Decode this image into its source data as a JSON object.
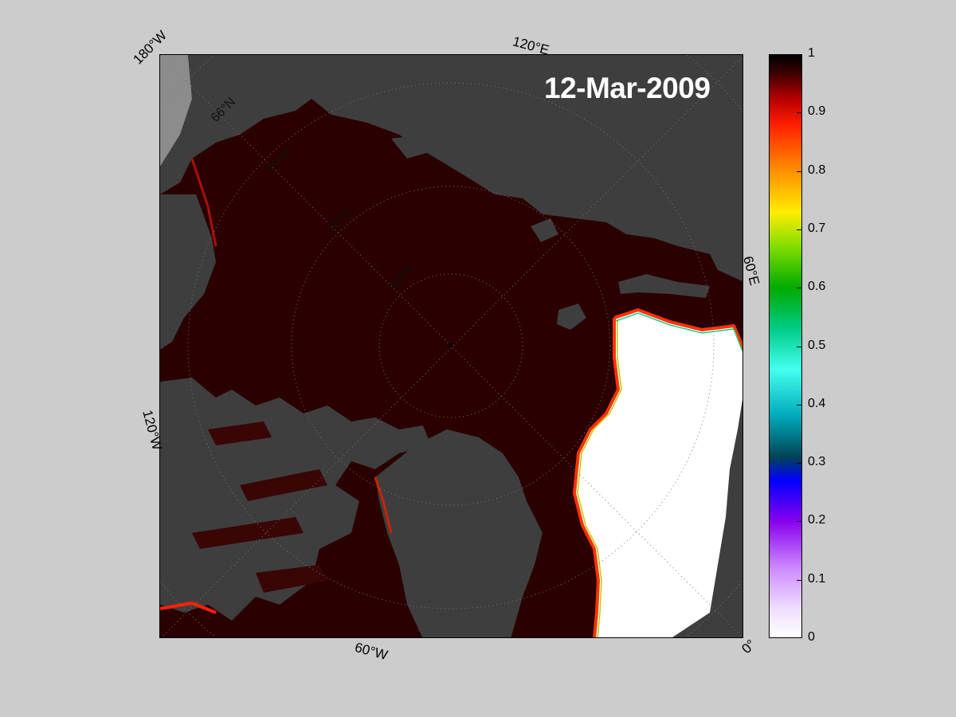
{
  "map": {
    "date": "12-Mar-2009",
    "edge_labels": {
      "top_left": "180°W",
      "top": "120°E",
      "right": "60°E",
      "left": "120°W",
      "bottom": "60°W",
      "bottom_right": "0°"
    },
    "lat_labels": [
      "66°N",
      "72°N",
      "78°N",
      "84°N"
    ],
    "colors": {
      "ice_full": "#2a0000",
      "land": "#3e3e3e",
      "land_gray": "#8c8c8c",
      "open_water": "#ffffff"
    }
  },
  "colorbar": {
    "ticks": [
      "1",
      "0.9",
      "0.8",
      "0.7",
      "0.6",
      "0.5",
      "0.4",
      "0.3",
      "0.2",
      "0.1",
      "0"
    ],
    "stops": [
      {
        "value": 1.0,
        "color": "#000000"
      },
      {
        "value": 0.97,
        "color": "#3a0000"
      },
      {
        "value": 0.92,
        "color": "#c00000"
      },
      {
        "value": 0.88,
        "color": "#ff2000"
      },
      {
        "value": 0.8,
        "color": "#ff9000"
      },
      {
        "value": 0.73,
        "color": "#ffee00"
      },
      {
        "value": 0.67,
        "color": "#80dd00"
      },
      {
        "value": 0.6,
        "color": "#00aa00"
      },
      {
        "value": 0.53,
        "color": "#00cc88"
      },
      {
        "value": 0.46,
        "color": "#44ffee"
      },
      {
        "value": 0.38,
        "color": "#00aabb"
      },
      {
        "value": 0.31,
        "color": "#004455"
      },
      {
        "value": 0.27,
        "color": "#0000ff"
      },
      {
        "value": 0.2,
        "color": "#8800ee"
      },
      {
        "value": 0.12,
        "color": "#cc88ff"
      },
      {
        "value": 0.05,
        "color": "#eeddff"
      },
      {
        "value": 0.0,
        "color": "#ffffff"
      }
    ]
  }
}
